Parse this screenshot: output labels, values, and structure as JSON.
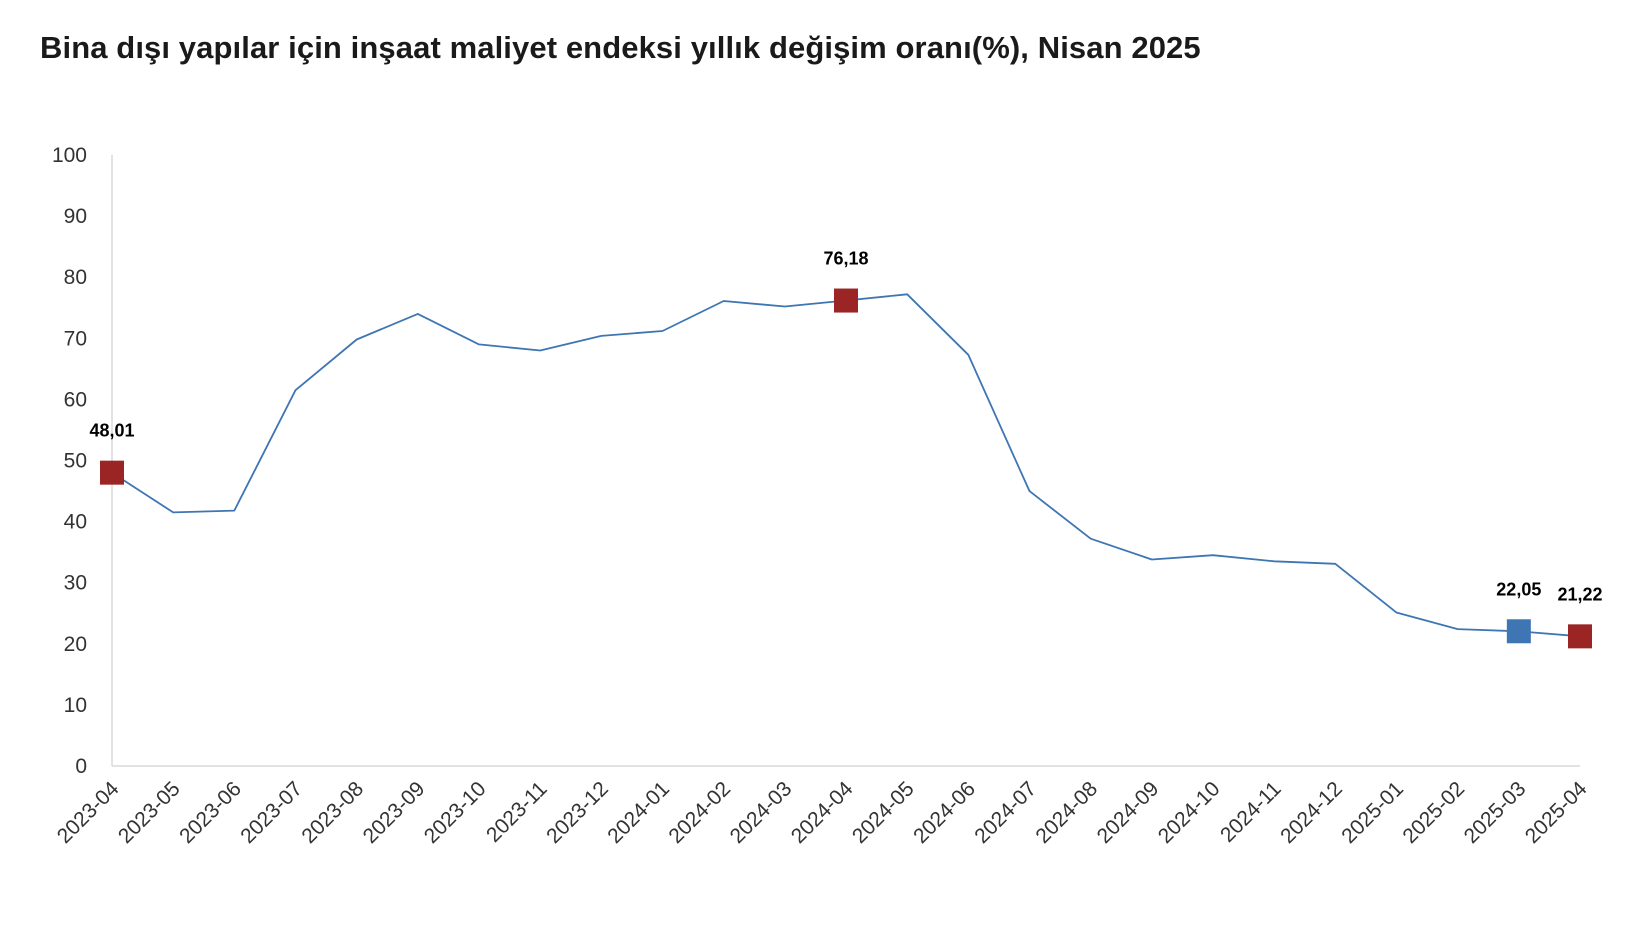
{
  "chart_data": {
    "type": "line",
    "title": "Bina dışı yapılar için inşaat maliyet endeksi yıllık değişim oranı(%), Nisan 2025",
    "xlabel": "",
    "ylabel": "",
    "ylim": [
      0,
      100
    ],
    "yticks": [
      "0",
      "10",
      "20",
      "30",
      "40",
      "50",
      "60",
      "70",
      "80",
      "90",
      "100"
    ],
    "grid": false,
    "legend": "none",
    "categories": [
      "2023-04",
      "2023-05",
      "2023-06",
      "2023-07",
      "2023-08",
      "2023-09",
      "2023-10",
      "2023-11",
      "2023-12",
      "2024-01",
      "2024-02",
      "2024-03",
      "2024-04",
      "2024-05",
      "2024-06",
      "2024-07",
      "2024-08",
      "2024-09",
      "2024-10",
      "2024-11",
      "2024-12",
      "2025-01",
      "2025-02",
      "2025-03",
      "2025-04"
    ],
    "series": [
      {
        "color": "#3e75b3",
        "values": [
          48.01,
          41.5,
          41.8,
          61.5,
          69.8,
          74.0,
          69.0,
          68.0,
          70.4,
          71.2,
          76.1,
          75.2,
          76.18,
          77.2,
          67.3,
          45.0,
          37.2,
          33.8,
          34.5,
          33.5,
          33.1,
          25.1,
          22.4,
          22.05,
          21.22
        ]
      }
    ],
    "markers": [
      {
        "index": 0,
        "label": "48,01",
        "color": "#9b2424"
      },
      {
        "index": 12,
        "label": "76,18",
        "color": "#9b2424"
      },
      {
        "index": 23,
        "label": "22,05",
        "color": "#3e75b3"
      },
      {
        "index": 24,
        "label": "21,22",
        "color": "#9b2424"
      }
    ],
    "axis_color": "#d9d9d9"
  }
}
